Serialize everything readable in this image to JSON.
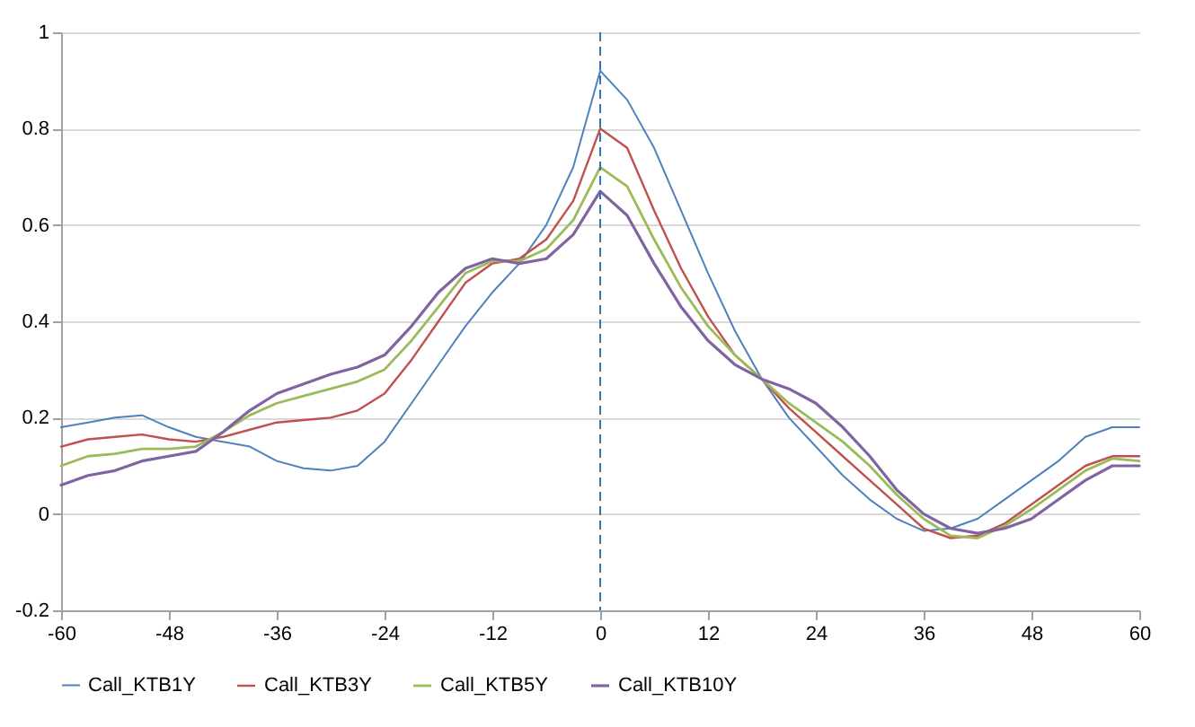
{
  "chart_data": {
    "type": "line",
    "x": [
      -60,
      -57,
      -54,
      -51,
      -48,
      -45,
      -42,
      -39,
      -36,
      -33,
      -30,
      -27,
      -24,
      -21,
      -18,
      -15,
      -12,
      -9,
      -6,
      -3,
      0,
      3,
      6,
      9,
      12,
      15,
      18,
      21,
      24,
      27,
      30,
      33,
      36,
      39,
      42,
      45,
      48,
      51,
      54,
      57,
      60
    ],
    "series": [
      {
        "name": "Call_KTB1Y",
        "color": "#4f81bd",
        "values": [
          0.18,
          0.19,
          0.2,
          0.205,
          0.18,
          0.16,
          0.15,
          0.14,
          0.11,
          0.095,
          0.09,
          0.1,
          0.15,
          0.23,
          0.31,
          0.39,
          0.46,
          0.52,
          0.6,
          0.72,
          0.92,
          0.86,
          0.76,
          0.63,
          0.5,
          0.38,
          0.28,
          0.2,
          0.14,
          0.08,
          0.03,
          -0.01,
          -0.035,
          -0.03,
          -0.01,
          0.03,
          0.07,
          0.11,
          0.16,
          0.18,
          0.18
        ]
      },
      {
        "name": "Call_KTB3Y",
        "color": "#c0504d",
        "values": [
          0.14,
          0.155,
          0.16,
          0.165,
          0.155,
          0.15,
          0.16,
          0.175,
          0.19,
          0.195,
          0.2,
          0.215,
          0.25,
          0.32,
          0.4,
          0.48,
          0.52,
          0.53,
          0.57,
          0.65,
          0.8,
          0.76,
          0.63,
          0.51,
          0.41,
          0.33,
          0.28,
          0.22,
          0.17,
          0.12,
          0.07,
          0.02,
          -0.03,
          -0.05,
          -0.045,
          -0.02,
          0.02,
          0.06,
          0.1,
          0.12,
          0.12
        ]
      },
      {
        "name": "Call_KTB5Y",
        "color": "#9bbb59",
        "values": [
          0.1,
          0.12,
          0.125,
          0.135,
          0.135,
          0.14,
          0.17,
          0.205,
          0.23,
          0.245,
          0.26,
          0.275,
          0.3,
          0.36,
          0.43,
          0.5,
          0.525,
          0.525,
          0.55,
          0.61,
          0.72,
          0.68,
          0.57,
          0.47,
          0.39,
          0.33,
          0.28,
          0.23,
          0.19,
          0.15,
          0.1,
          0.04,
          -0.01,
          -0.045,
          -0.05,
          -0.025,
          0.01,
          0.05,
          0.09,
          0.115,
          0.11
        ]
      },
      {
        "name": "Call_KTB10Y",
        "color": "#8064a2",
        "values": [
          0.06,
          0.08,
          0.09,
          0.11,
          0.12,
          0.13,
          0.17,
          0.215,
          0.25,
          0.27,
          0.29,
          0.305,
          0.33,
          0.39,
          0.46,
          0.51,
          0.53,
          0.52,
          0.53,
          0.58,
          0.67,
          0.62,
          0.52,
          0.43,
          0.36,
          0.31,
          0.28,
          0.26,
          0.23,
          0.18,
          0.12,
          0.05,
          0.0,
          -0.03,
          -0.04,
          -0.03,
          -0.01,
          0.03,
          0.07,
          0.1,
          0.1
        ]
      }
    ],
    "xlim": [
      -60,
      60
    ],
    "xticks": [
      -60,
      -48,
      -36,
      -24,
      -12,
      0,
      12,
      24,
      36,
      48,
      60
    ],
    "ylim": [
      -0.2,
      1
    ],
    "yticks": [
      -0.2,
      0,
      0.2,
      0.4,
      0.6,
      0.8,
      1
    ],
    "grid": "y",
    "legend": "bottom",
    "marker": "none",
    "line_style": "solid",
    "ref_lines": [
      {
        "axis": "x",
        "value": 0,
        "color": "#2e75b6",
        "line_style": "dashed"
      }
    ]
  }
}
